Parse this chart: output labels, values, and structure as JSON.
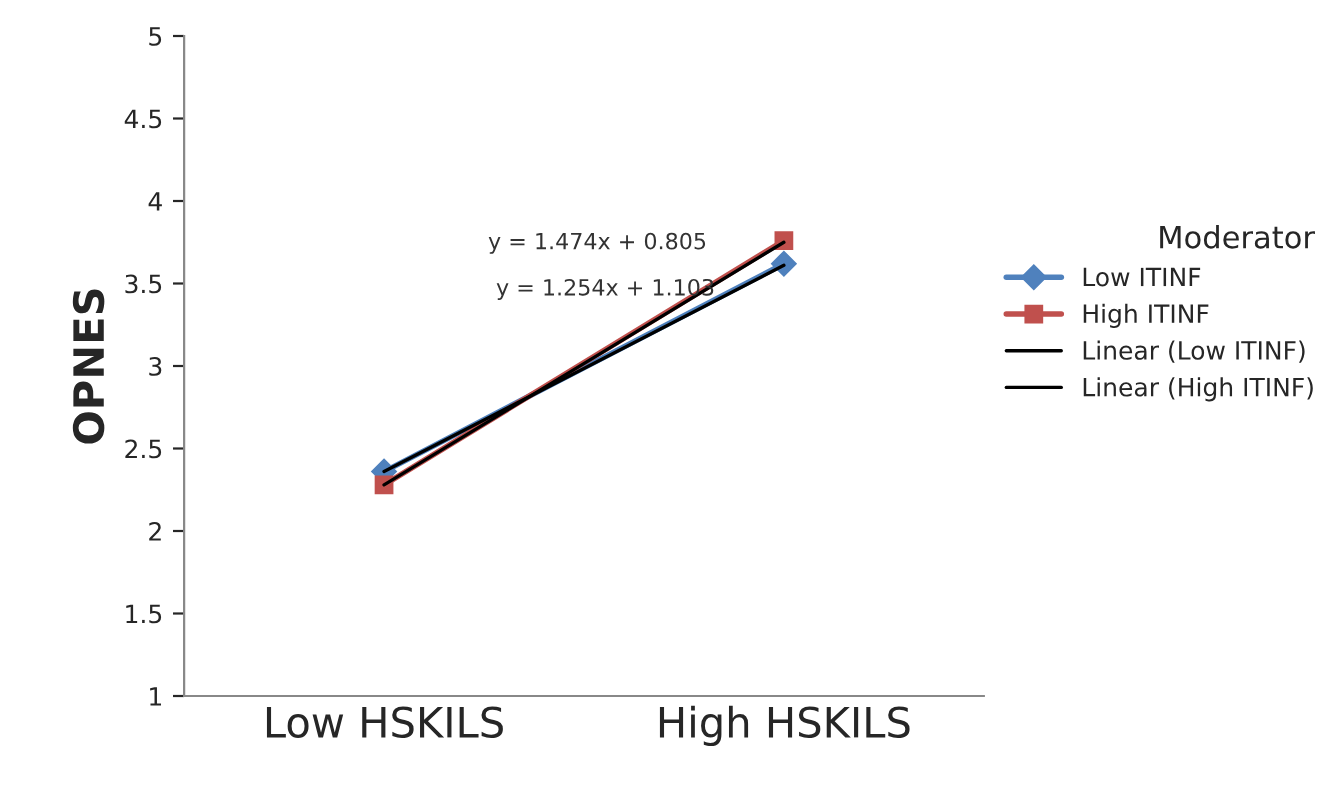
{
  "chart_data": {
    "type": "line",
    "ylabel": "OPNES",
    "legend_title": "Moderator",
    "categories": [
      "Low HSKILS",
      "High HSKILS"
    ],
    "series": [
      {
        "name": "Low ITINF",
        "color": "#4f81bd",
        "values": [
          2.36,
          3.62
        ],
        "marker": "diamond"
      },
      {
        "name": "High ITINF",
        "color": "#c0504d",
        "values": [
          2.28,
          3.76
        ],
        "marker": "square"
      },
      {
        "name": "Linear (Low ITINF)",
        "color": "#000000",
        "values": [
          2.36,
          3.61
        ],
        "marker": "none"
      },
      {
        "name": "Linear (High ITINF)",
        "color": "#000000",
        "values": [
          2.28,
          3.75
        ],
        "marker": "none"
      }
    ],
    "ylim": [
      1,
      5
    ],
    "yticks": [
      1,
      1.5,
      2,
      2.5,
      3,
      3.5,
      4,
      4.5,
      5
    ],
    "annotations": [
      "y = 1.474x + 0.805",
      "y = 1.254x + 1.103"
    ],
    "grid": false,
    "legend": "right",
    "line_style": "solid"
  }
}
